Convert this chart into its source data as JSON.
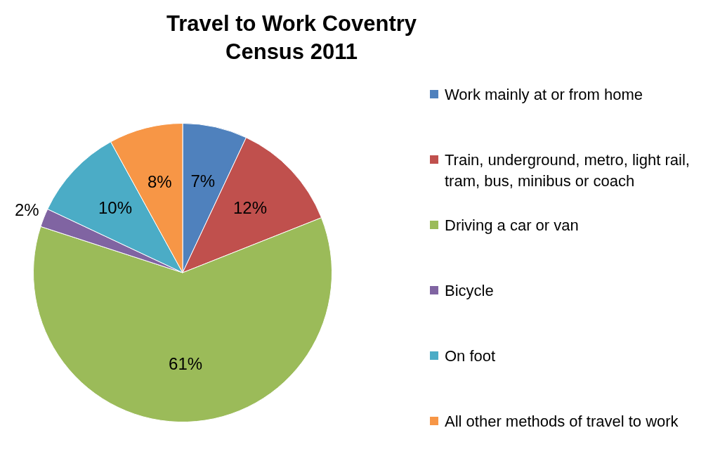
{
  "chart_data": {
    "type": "pie",
    "title": "Travel to Work Coventry Census 2011",
    "categories": [
      "Work mainly at or from home",
      "Train, underground, metro, light rail, tram, bus, minibus or coach",
      "Driving a car or van",
      "Bicycle",
      "On foot",
      "All other methods of travel to work"
    ],
    "values": [
      7,
      12,
      61,
      2,
      10,
      8
    ],
    "colors": [
      "#4f81bd",
      "#c0504d",
      "#9bbb59",
      "#8064a2",
      "#4bacc6",
      "#f79646"
    ],
    "value_labels": [
      "7%",
      "12%",
      "61%",
      "2%",
      "10%",
      "8%"
    ],
    "legend": "right"
  }
}
